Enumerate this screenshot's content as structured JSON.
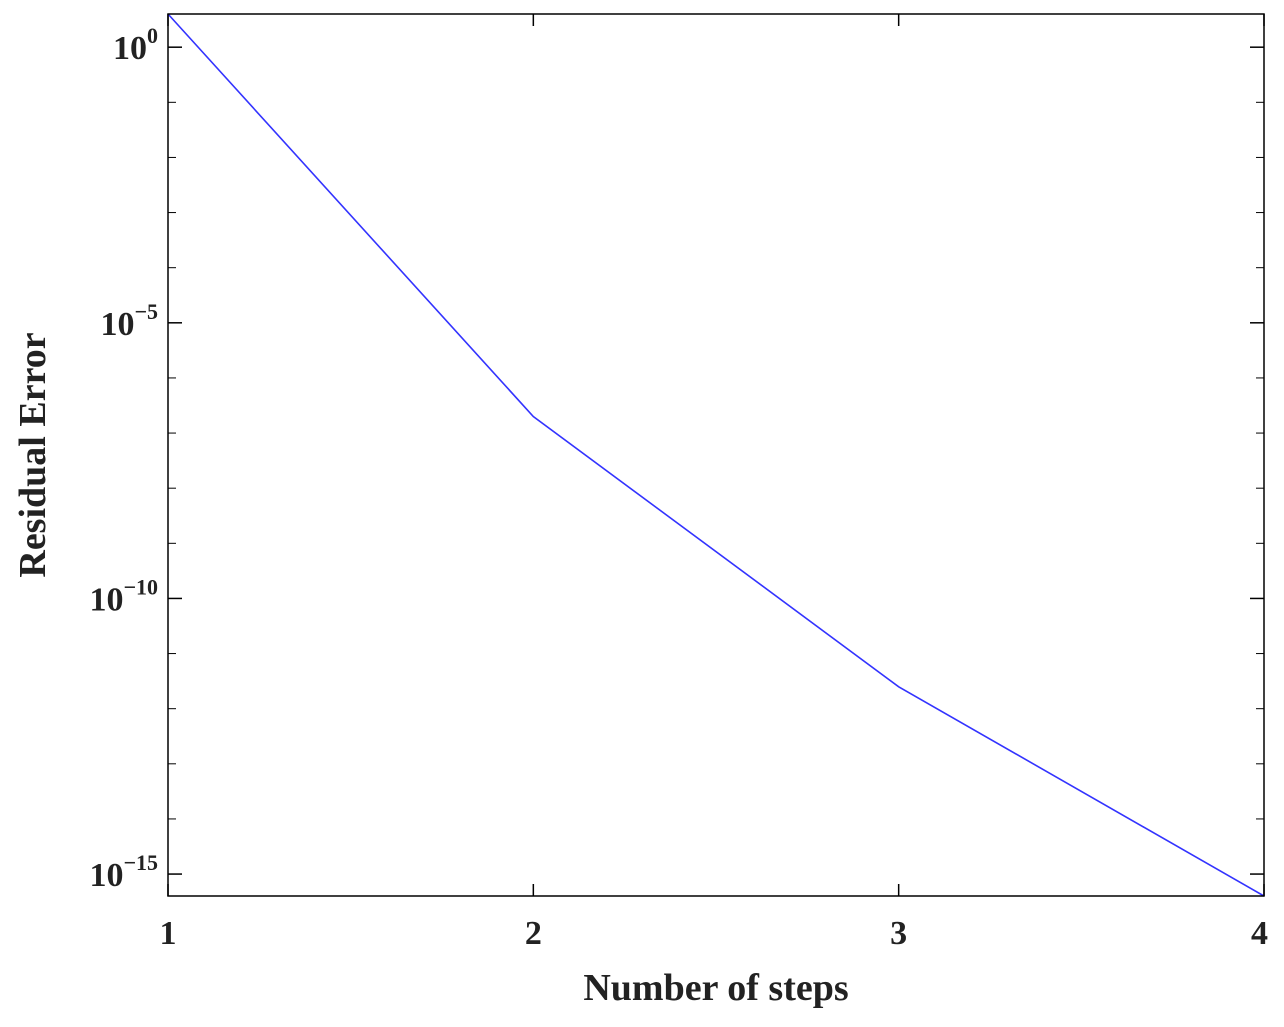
{
  "chart_data": {
    "type": "line",
    "title": "",
    "xlabel": "Number of steps",
    "ylabel": "Residual Error",
    "x_ticks": [
      1,
      2,
      3,
      4
    ],
    "y_scale": "log",
    "y_ticks": [
      {
        "base": "10",
        "exp": "0",
        "value": 1
      },
      {
        "base": "10",
        "exp": "−5",
        "value": 1e-05
      },
      {
        "base": "10",
        "exp": "−10",
        "value": 1e-10
      },
      {
        "base": "10",
        "exp": "−15",
        "value": 1e-15
      }
    ],
    "xlim": [
      1,
      4
    ],
    "ylim": [
      4e-16,
      4
    ],
    "grid": false,
    "series": [
      {
        "color": "#3333ff",
        "x": [
          1,
          2,
          3,
          4
        ],
        "y": [
          4,
          2e-07,
          2.5e-12,
          4e-16
        ]
      }
    ]
  }
}
